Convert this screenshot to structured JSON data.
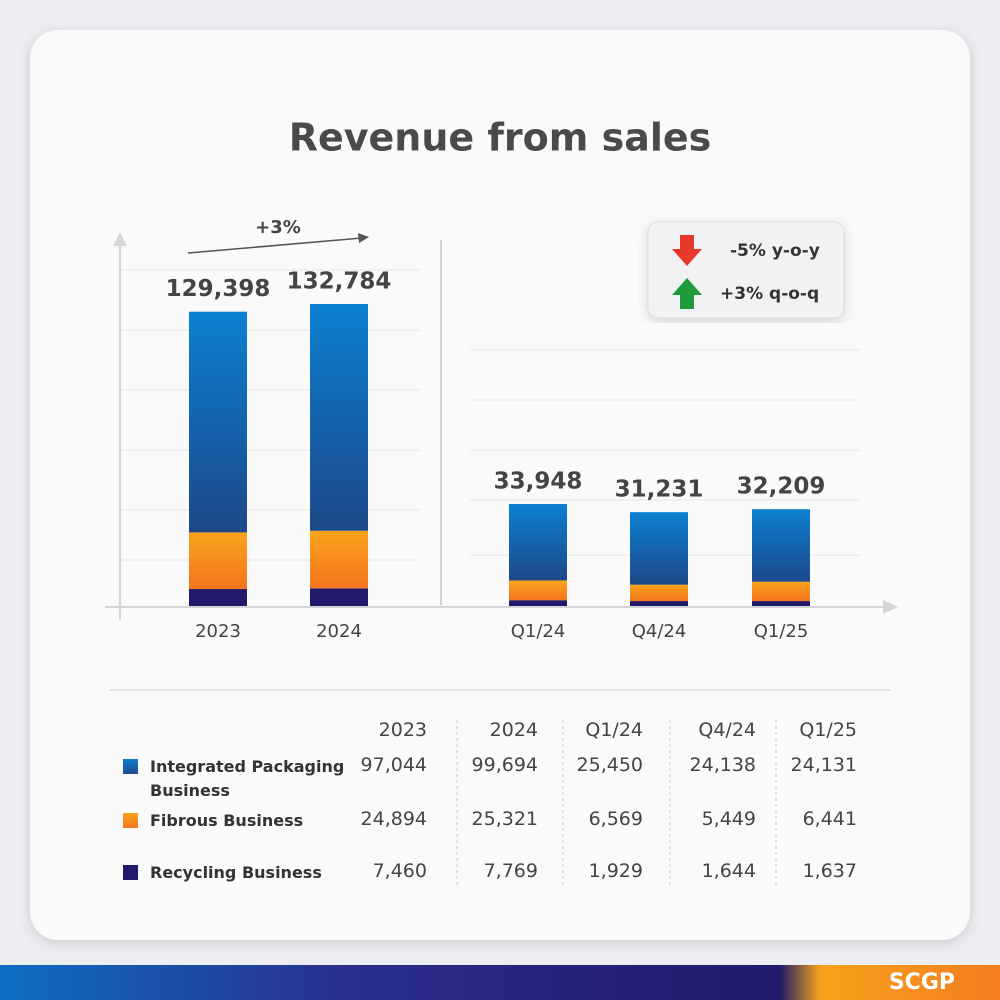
{
  "chart_data": [
    {
      "type": "bar",
      "stacked": true,
      "title": "Revenue from sales",
      "categories": [
        "2023",
        "2024"
      ],
      "series": [
        {
          "name": "Integrated Packaging Business",
          "color": "#0f66b8",
          "values": [
            97044,
            99694
          ],
          "value_labels": [
            "97,044",
            "99,694"
          ]
        },
        {
          "name": "Fibrous Business",
          "color": "#f68a1f",
          "values": [
            24894,
            25321
          ],
          "value_labels": [
            "24,894",
            "25,321"
          ]
        },
        {
          "name": "Recycling Business",
          "color": "#211a6b",
          "values": [
            7460,
            7769
          ],
          "value_labels": [
            "7,460",
            "7,769"
          ]
        }
      ],
      "totals": [
        129398,
        132784
      ],
      "total_labels": [
        "129,398",
        "132,784"
      ],
      "annotations": [
        "+3%"
      ]
    },
    {
      "type": "bar",
      "stacked": true,
      "categories": [
        "Q1/24",
        "Q4/24",
        "Q1/25"
      ],
      "series": [
        {
          "color": "#0f66b8",
          "values": [
            25450,
            24138,
            24131
          ],
          "value_labels": [
            "25,450",
            "24,138",
            "24,131"
          ]
        },
        {
          "color": "#f68a1f",
          "values": [
            6569,
            5449,
            6441
          ],
          "value_labels": [
            "6,569",
            "5,449",
            "6,441"
          ]
        },
        {
          "color": "#211a6b",
          "values": [
            1929,
            1644,
            1637
          ],
          "value_labels": [
            "1,929",
            "1,644",
            "1,637"
          ]
        }
      ],
      "totals": [
        33948,
        31231,
        32209
      ],
      "total_labels": [
        "33,948",
        "31,231",
        "32,209"
      ],
      "annotations": [
        "-5% y-o-y",
        "+3% q-o-q"
      ]
    }
  ],
  "footer": {
    "brand": "SCGP"
  }
}
